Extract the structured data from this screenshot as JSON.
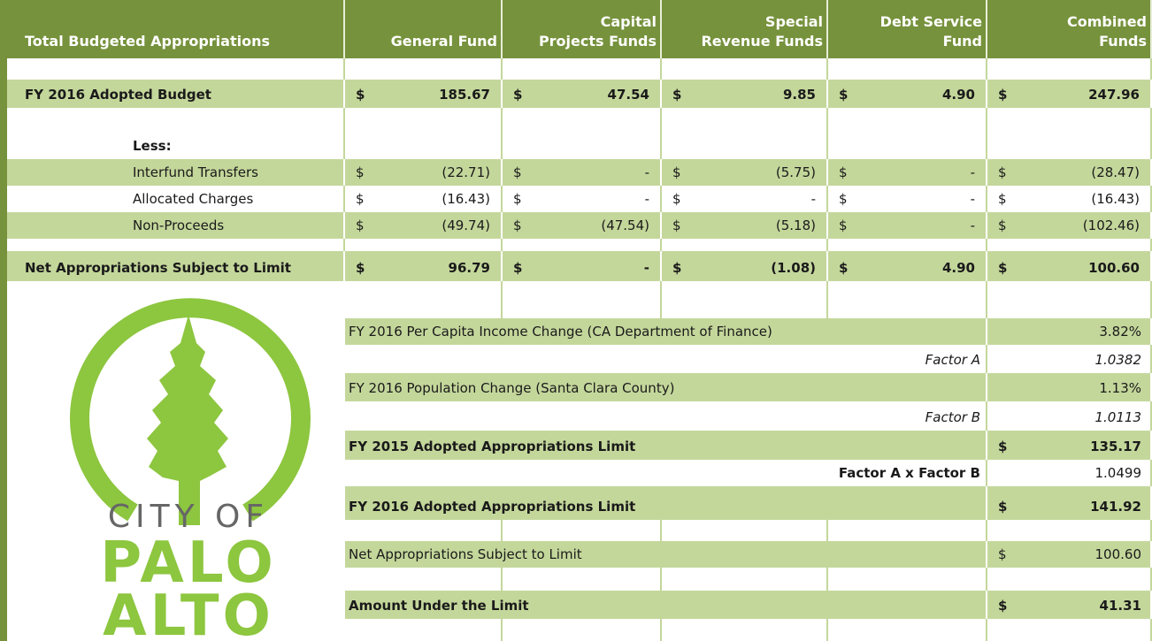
{
  "header": {
    "label": "Total Budgeted Appropriations",
    "columns": [
      [
        "General Fund"
      ],
      [
        "Capital",
        "Projects Funds"
      ],
      [
        "Special",
        "Revenue Funds"
      ],
      [
        "Debt Service",
        "Fund"
      ],
      [
        "Combined",
        "Funds"
      ]
    ]
  },
  "budget_rows": [
    {
      "label": "FY 2016 Adopted Budget",
      "cells": [
        [
          "$",
          "185.67"
        ],
        [
          "$",
          "47.54"
        ],
        [
          "$",
          "9.85"
        ],
        [
          "$",
          "4.90"
        ],
        [
          "$",
          "247.96"
        ]
      ]
    },
    {
      "label": "Less:"
    },
    {
      "label": "Interfund Transfers",
      "cells": [
        [
          "$",
          "(22.71)"
        ],
        [
          "$",
          "-"
        ],
        [
          "$",
          "(5.75)"
        ],
        [
          "$",
          "-"
        ],
        [
          "$",
          "(28.47)"
        ]
      ]
    },
    {
      "label": "Allocated Charges",
      "cells": [
        [
          "$",
          "(16.43)"
        ],
        [
          "$",
          "-"
        ],
        [
          "$",
          "-"
        ],
        [
          "$",
          "-"
        ],
        [
          "$",
          "(16.43)"
        ]
      ]
    },
    {
      "label": "Non-Proceeds",
      "cells": [
        [
          "$",
          "(49.74)"
        ],
        [
          "$",
          "(47.54)"
        ],
        [
          "$",
          "(5.18)"
        ],
        [
          "$",
          "-"
        ],
        [
          "$",
          "(102.46)"
        ]
      ]
    },
    {
      "label": "Net Appropriations Subject to Limit",
      "cells": [
        [
          "$",
          "96.79"
        ],
        [
          "$",
          "-"
        ],
        [
          "$",
          "(1.08)"
        ],
        [
          "$",
          "4.90"
        ],
        [
          "$",
          "100.60"
        ]
      ]
    }
  ],
  "limit_rows": [
    {
      "label": "FY 2016 Per Capita Income Change (CA Department of Finance)",
      "value": "3.82%"
    },
    {
      "label": "Factor A",
      "value": "1.0382"
    },
    {
      "label": "FY 2016 Population Change (Santa Clara County)",
      "value": "1.13%"
    },
    {
      "label": "Factor B",
      "value": "1.0113"
    },
    {
      "label": "FY 2015 Adopted Appropriations Limit",
      "currency": "$",
      "value": "135.17"
    },
    {
      "label": "Factor A x Factor B",
      "value": "1.0499"
    },
    {
      "label": "FY 2016 Adopted Appropriations Limit",
      "currency": "$",
      "value": "141.92"
    },
    {
      "label": "Net Appropriations Subject to Limit",
      "currency": "$",
      "value": "100.60"
    },
    {
      "label": "Amount Under the Limit",
      "currency": "$",
      "value": "41.31"
    }
  ],
  "logo": {
    "line1": "CITY OF",
    "line2": "PALO",
    "line3": "ALTO"
  }
}
